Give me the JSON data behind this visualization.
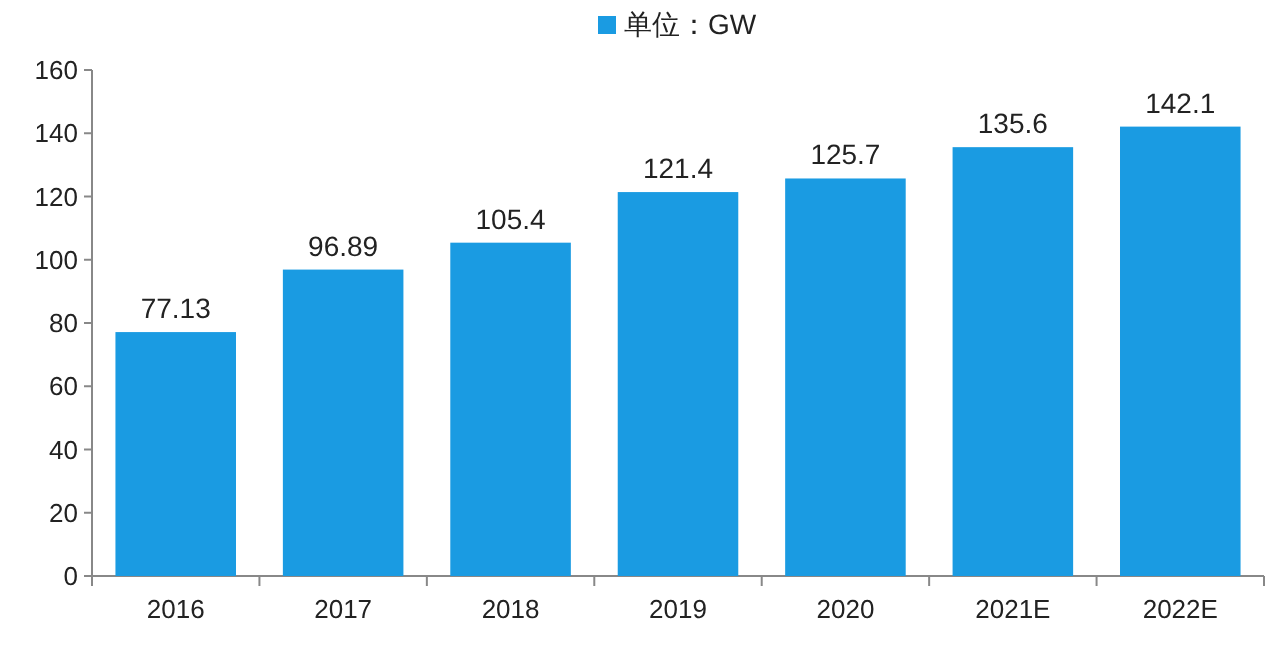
{
  "chart_data": {
    "type": "bar",
    "categories": [
      "2016",
      "2017",
      "2018",
      "2019",
      "2020",
      "2021E",
      "2022E"
    ],
    "series": [
      {
        "name": "单位：GW",
        "color": "#1a9be2",
        "values": [
          77.13,
          96.89,
          105.4,
          121.4,
          125.7,
          135.6,
          142.1
        ]
      }
    ],
    "value_labels": [
      "77.13",
      "96.89",
      "105.4",
      "121.4",
      "125.7",
      "135.6",
      "142.1"
    ],
    "ylim": [
      0,
      160
    ],
    "yticks": [
      0,
      20,
      40,
      60,
      80,
      100,
      120,
      140,
      160
    ],
    "grid": false,
    "legend": "top"
  }
}
